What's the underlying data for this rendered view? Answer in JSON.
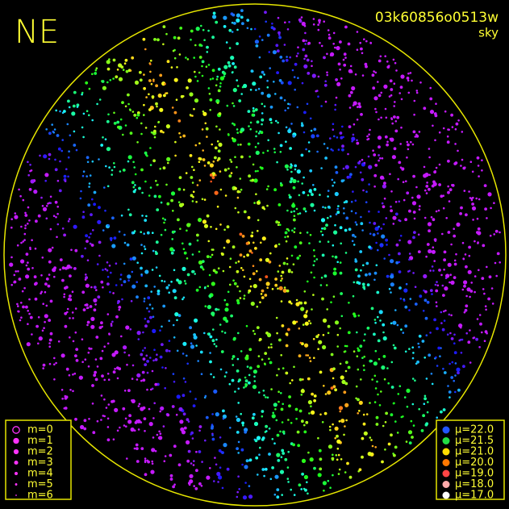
{
  "header": {
    "direction": "NE",
    "frame_id": "03k60856o0513w",
    "view": "sky"
  },
  "magnitude_legend": [
    "m=0",
    "m=1",
    "m=2",
    "m=3",
    "m=4",
    "m=5",
    "m=6"
  ],
  "brightness_legend": [
    "μ=22.0",
    "μ=21.5",
    "μ=21.0",
    "μ=20.0",
    "μ=19.0",
    "μ=18.0",
    "μ=17.0"
  ]
}
